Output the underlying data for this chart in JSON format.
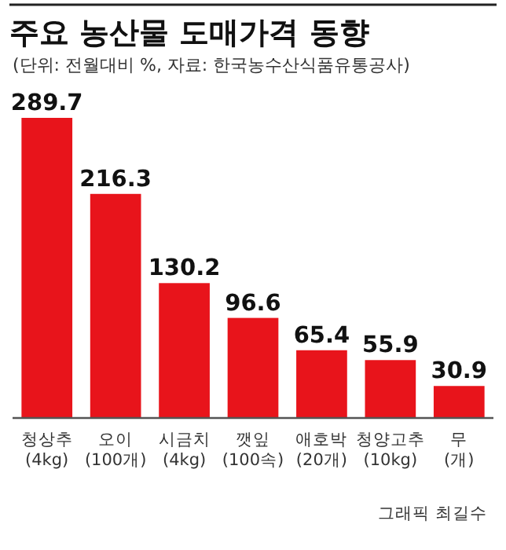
{
  "chart_data": {
    "type": "bar",
    "title": "주요 농산물 도매가격 동향",
    "subtitle": "(단위: 전월대비 %, 자료: 한국농수산식품유통공사)",
    "categories": [
      "청상추\n(4kg)",
      "오이\n(100개)",
      "시금치\n(4kg)",
      "깻잎\n(100속)",
      "애호박\n(20개)",
      "청양고추\n(10kg)",
      "무\n(개)"
    ],
    "values": [
      289.7,
      216.3,
      130.2,
      96.6,
      65.4,
      55.9,
      30.9
    ],
    "color": "#e8141b",
    "data_labels": true,
    "annotations": [
      "그래픽 최길수"
    ]
  }
}
